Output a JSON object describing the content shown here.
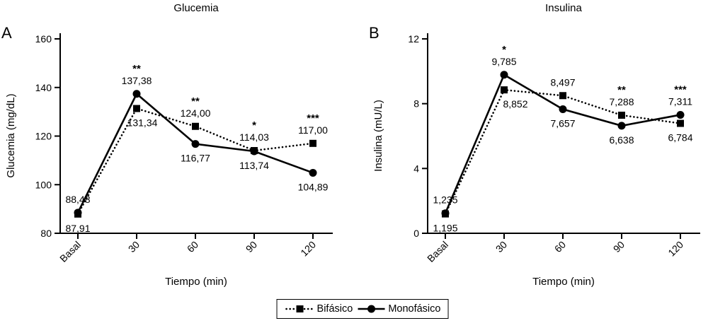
{
  "figure": {
    "colors": {
      "foreground": "#000000",
      "background": "#ffffff"
    },
    "legend": {
      "items": [
        {
          "label": "Bifásico",
          "marker": "square",
          "line": "dotted"
        },
        {
          "label": "Monofásico",
          "marker": "circle",
          "line": "solid"
        }
      ]
    }
  },
  "chart_data": [
    {
      "type": "line",
      "panel_label": "A",
      "title": "Glucemia",
      "xlabel": "Tiempo (min)",
      "ylabel": "Glucemia (mg/dL)",
      "categories": [
        "Basal",
        "30",
        "60",
        "90",
        "120"
      ],
      "ylim": [
        80,
        160
      ],
      "yticks": [
        80,
        100,
        120,
        140,
        160
      ],
      "grid": false,
      "legend_position": "bottom-center",
      "series": [
        {
          "name": "Bifásico",
          "marker": "square",
          "line": "dotted",
          "values": [
            87.91,
            131.34,
            124.0,
            114.03,
            117.0
          ],
          "labels": [
            "87,91",
            "131,34",
            "124,00",
            "114,03",
            "117,00"
          ],
          "label_pos": [
            "below",
            "below",
            "above",
            "above",
            "above"
          ],
          "label_dx": [
            0,
            8,
            0,
            0,
            0
          ]
        },
        {
          "name": "Monofásico",
          "marker": "circle",
          "line": "solid",
          "values": [
            88.48,
            137.38,
            116.77,
            113.74,
            104.89
          ],
          "labels": [
            "88,48",
            "137,38",
            "116,77",
            "113,74",
            "104,89"
          ],
          "label_pos": [
            "above",
            "above",
            "below",
            "below",
            "below"
          ],
          "label_dx": [
            0,
            0,
            0,
            0,
            0
          ]
        }
      ],
      "annotations": [
        {
          "x_index": 1,
          "series": 1,
          "text": "**"
        },
        {
          "x_index": 2,
          "series": 0,
          "text": "**"
        },
        {
          "x_index": 3,
          "series": 0,
          "text": "*"
        },
        {
          "x_index": 4,
          "series": 0,
          "text": "***"
        }
      ]
    },
    {
      "type": "line",
      "panel_label": "B",
      "title": "Insulina",
      "xlabel": "Tiempo (min)",
      "ylabel": "Insulina (mU/L)",
      "categories": [
        "Basal",
        "30",
        "60",
        "90",
        "120"
      ],
      "ylim": [
        0,
        12
      ],
      "yticks": [
        0,
        4,
        8,
        12
      ],
      "grid": false,
      "legend_position": "bottom-center",
      "series": [
        {
          "name": "Bifásico",
          "marker": "square",
          "line": "dotted",
          "values": [
            1.195,
            8.852,
            8.497,
            7.288,
            6.784
          ],
          "labels": [
            "1,195",
            "8,852",
            "8,497",
            "7,288",
            "6,784"
          ],
          "label_pos": [
            "below",
            "below",
            "above",
            "above",
            "below"
          ],
          "label_dx": [
            0,
            16,
            0,
            0,
            0
          ]
        },
        {
          "name": "Monofásico",
          "marker": "circle",
          "line": "solid",
          "values": [
            1.235,
            9.785,
            7.657,
            6.638,
            7.311
          ],
          "labels": [
            "1,235",
            "9,785",
            "7,657",
            "6,638",
            "7,311"
          ],
          "label_pos": [
            "above",
            "above",
            "below",
            "below",
            "above"
          ],
          "label_dx": [
            0,
            0,
            0,
            0,
            0
          ]
        }
      ],
      "annotations": [
        {
          "x_index": 1,
          "series": 1,
          "text": "*"
        },
        {
          "x_index": 3,
          "series": 0,
          "text": "**"
        },
        {
          "x_index": 4,
          "series": 1,
          "text": "***"
        }
      ]
    }
  ]
}
